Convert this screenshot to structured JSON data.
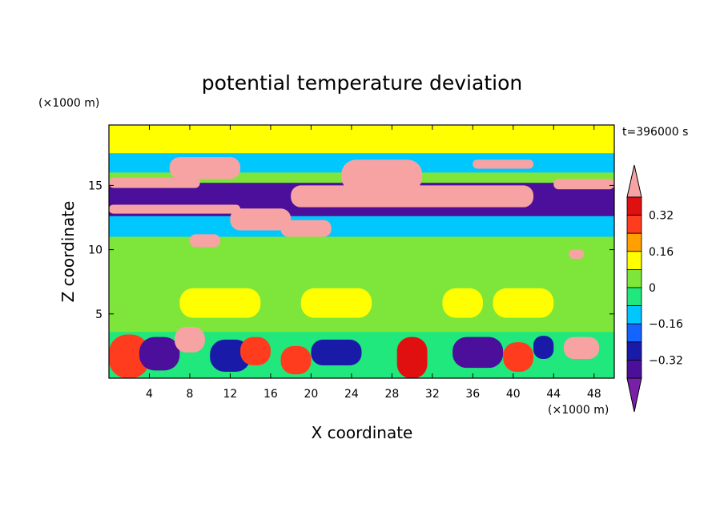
{
  "chart_data": {
    "type": "heatmap",
    "title": "potential temperature deviation",
    "xlabel": "X coordinate",
    "ylabel": "Z coordinate",
    "x_unit": "(×1000 m)",
    "y_unit": "(×1000 m)",
    "time_label": "t=396000 s",
    "xlim": [
      0,
      50
    ],
    "ylim": [
      0,
      19.7
    ],
    "x_ticks": [
      4,
      8,
      12,
      16,
      20,
      24,
      28,
      32,
      36,
      40,
      44,
      48
    ],
    "y_ticks": [
      5,
      10,
      15
    ],
    "colorbar": {
      "levels": [
        -0.4,
        -0.32,
        -0.24,
        -0.16,
        -0.08,
        0,
        0.08,
        0.16,
        0.24,
        0.32,
        0.4
      ],
      "colors": [
        "#7a1fa8",
        "#4b0f9c",
        "#1a1aa8",
        "#1464ff",
        "#00c8ff",
        "#20e87c",
        "#7ee63a",
        "#ffff00",
        "#ffa000",
        "#ff3c1e",
        "#e01010",
        "#f7a3a3"
      ],
      "tick_labels": [
        "0.32",
        "0.16",
        "0",
        "−0.16",
        "−0.32"
      ],
      "tick_values": [
        0.32,
        0.16,
        0,
        -0.16,
        -0.32
      ],
      "extend": "both"
    },
    "regions": [
      {
        "x": [
          0,
          50
        ],
        "z": [
          0,
          19.7
        ],
        "value": 0.05
      },
      {
        "x": [
          0,
          50
        ],
        "z": [
          17.5,
          19.7
        ],
        "value": 0.08
      },
      {
        "x": [
          0,
          50
        ],
        "z": [
          16.0,
          17.5
        ],
        "value": -0.1
      },
      {
        "x": [
          0,
          50
        ],
        "z": [
          12.6,
          15.2
        ],
        "value": -0.33
      },
      {
        "x": [
          0,
          50
        ],
        "z": [
          11.0,
          12.6
        ],
        "value": -0.12
      },
      {
        "x": [
          0,
          50
        ],
        "z": [
          3.6,
          11.0
        ],
        "value": 0.02
      },
      {
        "x": [
          7,
          15
        ],
        "z": [
          4.7,
          7.0
        ],
        "value": 0.08
      },
      {
        "x": [
          19,
          26
        ],
        "z": [
          4.7,
          7.0
        ],
        "value": 0.08
      },
      {
        "x": [
          33,
          37
        ],
        "z": [
          4.7,
          7.0
        ],
        "value": 0.08
      },
      {
        "x": [
          38,
          44
        ],
        "z": [
          4.7,
          7.0
        ],
        "value": 0.08
      },
      {
        "x": [
          0,
          50
        ],
        "z": [
          0,
          3.6
        ],
        "value": -0.05
      },
      {
        "x": [
          0,
          4
        ],
        "z": [
          0,
          3.4
        ],
        "value": 0.3
      },
      {
        "x": [
          3,
          7
        ],
        "z": [
          0.6,
          3.2
        ],
        "value": -0.35
      },
      {
        "x": [
          6.5,
          9.5
        ],
        "z": [
          2.0,
          4.0
        ],
        "value": 0.4
      },
      {
        "x": [
          10,
          14
        ],
        "z": [
          0.5,
          3.0
        ],
        "value": -0.3
      },
      {
        "x": [
          13,
          16
        ],
        "z": [
          1.0,
          3.2
        ],
        "value": 0.25
      },
      {
        "x": [
          17,
          20
        ],
        "z": [
          0.3,
          2.5
        ],
        "value": 0.3
      },
      {
        "x": [
          20,
          25
        ],
        "z": [
          1.0,
          3.0
        ],
        "value": -0.25
      },
      {
        "x": [
          28.5,
          31.5
        ],
        "z": [
          0,
          3.2
        ],
        "value": 0.35
      },
      {
        "x": [
          34,
          39
        ],
        "z": [
          0.8,
          3.2
        ],
        "value": -0.38
      },
      {
        "x": [
          39,
          42
        ],
        "z": [
          0.5,
          2.8
        ],
        "value": 0.3
      },
      {
        "x": [
          42,
          44
        ],
        "z": [
          1.5,
          3.3
        ],
        "value": -0.3
      },
      {
        "x": [
          45,
          48.5
        ],
        "z": [
          1.5,
          3.2
        ],
        "value": 0.42
      },
      {
        "x": [
          6,
          13
        ],
        "z": [
          15.5,
          17.2
        ],
        "value": 0.42
      },
      {
        "x": [
          23,
          31
        ],
        "z": [
          14.5,
          17.0
        ],
        "value": 0.42
      },
      {
        "x": [
          0,
          9
        ],
        "z": [
          14.8,
          15.6
        ],
        "value": 0.42
      },
      {
        "x": [
          18,
          42
        ],
        "z": [
          13.3,
          15.0
        ],
        "value": 0.42
      },
      {
        "x": [
          36,
          42
        ],
        "z": [
          16.3,
          17.0
        ],
        "value": 0.42
      },
      {
        "x": [
          44,
          50
        ],
        "z": [
          14.7,
          15.5
        ],
        "value": 0.42
      },
      {
        "x": [
          0,
          13
        ],
        "z": [
          12.8,
          13.5
        ],
        "value": 0.42
      },
      {
        "x": [
          12,
          18
        ],
        "z": [
          11.5,
          13.2
        ],
        "value": 0.42
      },
      {
        "x": [
          17,
          22
        ],
        "z": [
          11.0,
          12.3
        ],
        "value": 0.42
      },
      {
        "x": [
          8,
          11
        ],
        "z": [
          10.2,
          11.2
        ],
        "value": 0.42
      },
      {
        "x": [
          45.5,
          47
        ],
        "z": [
          9.3,
          10.0
        ],
        "value": 0.42
      }
    ]
  }
}
